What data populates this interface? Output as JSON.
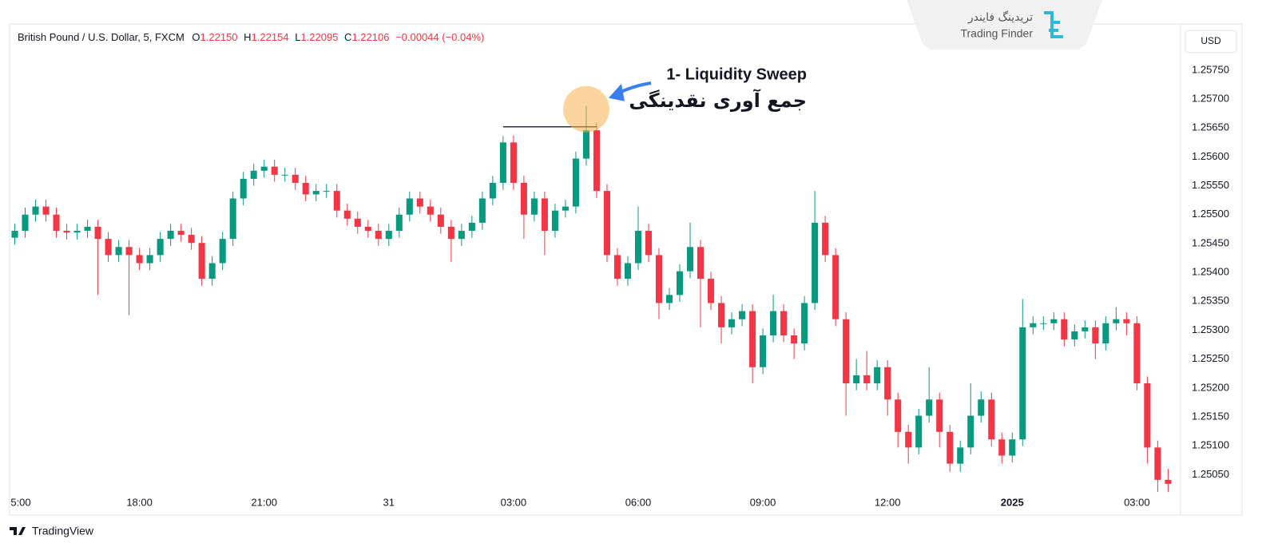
{
  "header": {
    "symbol": "British Pound / U.S. Dollar, 5, FXCM",
    "o_label": "O",
    "o": "1.22150",
    "h_label": "H",
    "h": "1.22154",
    "l_label": "L",
    "l": "1.22095",
    "c_label": "C",
    "c": "1.22106",
    "change": "−0.00044 (−0.04%)"
  },
  "currency": "USD",
  "brand": {
    "fa": "تریدینگ فایندر",
    "en": "Trading Finder"
  },
  "footer": {
    "platform": "TradingView"
  },
  "chart_data": {
    "type": "candlestick",
    "annotation": {
      "title": "1- Liquidity Sweep",
      "subtitle": "جمع آوری نقدینگی",
      "level": 1.25652,
      "from": 47,
      "to": 56,
      "target": 55
    },
    "up_color": "#089981",
    "down_color": "#f23645",
    "xlim": [
      -0.5,
      112.2
    ],
    "xticks": [
      {
        "value": 0,
        "label": "5:00"
      },
      {
        "value": 12,
        "label": "18:00"
      },
      {
        "value": 24,
        "label": "21:00"
      },
      {
        "value": 36,
        "label": "31"
      },
      {
        "value": 48,
        "label": "03:00"
      },
      {
        "value": 60,
        "label": "06:00"
      },
      {
        "value": 72,
        "label": "09:00"
      },
      {
        "value": 84,
        "label": "12:00"
      },
      {
        "value": 96,
        "label": "2025"
      },
      {
        "value": 108,
        "label": "03:00"
      }
    ],
    "ylim": [
      1.2498,
      1.2583
    ],
    "yticks": [
      {
        "value": 1.2505,
        "label": "1.25050"
      },
      {
        "value": 1.251,
        "label": "1.25100"
      },
      {
        "value": 1.2515,
        "label": "1.25150"
      },
      {
        "value": 1.252,
        "label": "1.25200"
      },
      {
        "value": 1.2525,
        "label": "1.25250"
      },
      {
        "value": 1.253,
        "label": "1.25300"
      },
      {
        "value": 1.2535,
        "label": "1.25350"
      },
      {
        "value": 1.254,
        "label": "1.25400"
      },
      {
        "value": 1.2545,
        "label": "1.25450"
      },
      {
        "value": 1.255,
        "label": "1.25500"
      },
      {
        "value": 1.2555,
        "label": "1.25550"
      },
      {
        "value": 1.256,
        "label": "1.25600"
      },
      {
        "value": 1.2565,
        "label": "1.25650"
      },
      {
        "value": 1.257,
        "label": "1.25700"
      },
      {
        "value": 1.2575,
        "label": "1.25750"
      }
    ],
    "open": [
      1.2546,
      1.25472,
      1.255,
      1.25514,
      1.255,
      1.25472,
      1.25469,
      1.25472,
      1.25479,
      1.25458,
      1.2543,
      1.25444,
      1.2543,
      1.25416,
      1.2543,
      1.25458,
      1.25472,
      1.25465,
      1.25451,
      1.25389,
      1.25416,
      1.25458,
      1.25528,
      1.25562,
      1.25576,
      1.25583,
      1.25569,
      1.25569,
      1.25555,
      1.25535,
      1.25541,
      1.25541,
      1.25507,
      1.25493,
      1.25479,
      1.25472,
      1.25458,
      1.25472,
      1.255,
      1.25528,
      1.25514,
      1.255,
      1.25479,
      1.25458,
      1.25472,
      1.25486,
      1.25528,
      1.25555,
      1.25625,
      1.25555,
      1.255,
      1.25528,
      1.25472,
      1.25507,
      1.25514,
      1.25597,
      1.25646,
      1.25541,
      1.2543,
      1.25389,
      1.25416,
      1.25472,
      1.2543,
      1.25347,
      1.25361,
      1.25402,
      1.25444,
      1.25389,
      1.25347,
      1.25305,
      1.25319,
      1.25333,
      1.25236,
      1.25291,
      1.25333,
      1.25291,
      1.25277,
      1.25347,
      1.25486,
      1.2543,
      1.25319,
      1.25208,
      1.25222,
      1.25208,
      1.25236,
      1.2518,
      1.25124,
      1.25097,
      1.25152,
      1.2518,
      1.25124,
      1.25069,
      1.25097,
      1.25152,
      1.2518,
      1.25111,
      1.25083,
      1.25111,
      1.25305,
      1.25312,
      1.25312,
      1.25319,
      1.25284,
      1.25298,
      1.25305,
      1.25277,
      1.25312,
      1.25319,
      1.25312,
      1.25208,
      1.25097,
      1.25041
    ],
    "high": [
      1.25484,
      1.25512,
      1.25526,
      1.25526,
      1.25512,
      1.25484,
      1.25484,
      1.25491,
      1.25491,
      1.2547,
      1.25456,
      1.25456,
      1.25442,
      1.25442,
      1.2547,
      1.25484,
      1.25484,
      1.25477,
      1.25463,
      1.25428,
      1.2547,
      1.2554,
      1.25574,
      1.25588,
      1.25595,
      1.25595,
      1.25581,
      1.25581,
      1.25567,
      1.25553,
      1.25553,
      1.25553,
      1.25519,
      1.25505,
      1.25491,
      1.25484,
      1.25484,
      1.25512,
      1.2554,
      1.2554,
      1.25526,
      1.25512,
      1.25491,
      1.25484,
      1.25498,
      1.2554,
      1.25567,
      1.25636,
      1.25637,
      1.25567,
      1.2554,
      1.2554,
      1.25519,
      1.25526,
      1.25609,
      1.25688,
      1.25658,
      1.25553,
      1.25442,
      1.25428,
      1.25514,
      1.25484,
      1.25442,
      1.25373,
      1.25414,
      1.25486,
      1.25456,
      1.25401,
      1.25359,
      1.25331,
      1.25345,
      1.25345,
      1.25303,
      1.25361,
      1.25345,
      1.25303,
      1.25359,
      1.25541,
      1.25498,
      1.25442,
      1.25331,
      1.2525,
      1.25264,
      1.25248,
      1.25248,
      1.25192,
      1.25136,
      1.25164,
      1.25236,
      1.25192,
      1.25136,
      1.25109,
      1.25208,
      1.25194,
      1.25192,
      1.25123,
      1.25123,
      1.25354,
      1.25324,
      1.25324,
      1.25331,
      1.25331,
      1.2531,
      1.25317,
      1.25317,
      1.25324,
      1.2534,
      1.25331,
      1.25324,
      1.2522,
      1.25109,
      1.2506
    ],
    "low": [
      1.25448,
      1.2546,
      1.25488,
      1.25488,
      1.2546,
      1.25457,
      1.25457,
      1.2546,
      1.25361,
      1.25418,
      1.25418,
      1.25326,
      1.25404,
      1.25404,
      1.25418,
      1.25446,
      1.25453,
      1.25439,
      1.25377,
      1.25377,
      1.25404,
      1.25446,
      1.25516,
      1.2555,
      1.25564,
      1.25557,
      1.25557,
      1.25543,
      1.25523,
      1.25523,
      1.25529,
      1.25495,
      1.25481,
      1.25467,
      1.2546,
      1.25446,
      1.25446,
      1.2546,
      1.25488,
      1.25502,
      1.25488,
      1.25467,
      1.25418,
      1.25446,
      1.2546,
      1.25474,
      1.25516,
      1.25543,
      1.25543,
      1.25458,
      1.25488,
      1.2543,
      1.2546,
      1.25495,
      1.25502,
      1.25585,
      1.25529,
      1.25418,
      1.25377,
      1.25377,
      1.25404,
      1.25418,
      1.25319,
      1.25335,
      1.25349,
      1.2539,
      1.25305,
      1.25335,
      1.25277,
      1.25293,
      1.25307,
      1.25208,
      1.25224,
      1.25279,
      1.25279,
      1.2525,
      1.25265,
      1.25335,
      1.25418,
      1.25307,
      1.25152,
      1.25196,
      1.25196,
      1.25196,
      1.25152,
      1.25097,
      1.25069,
      1.25085,
      1.2514,
      1.25097,
      1.25055,
      1.25055,
      1.25085,
      1.2514,
      1.25099,
      1.25069,
      1.25071,
      1.25099,
      1.25293,
      1.253,
      1.253,
      1.25272,
      1.25272,
      1.25286,
      1.2525,
      1.25265,
      1.253,
      1.25291,
      1.25196,
      1.25069,
      1.2502,
      1.2502
    ],
    "close": [
      1.25472,
      1.255,
      1.25514,
      1.255,
      1.25472,
      1.25469,
      1.25472,
      1.25479,
      1.25458,
      1.2543,
      1.25444,
      1.2543,
      1.25416,
      1.2543,
      1.25458,
      1.25472,
      1.25465,
      1.25451,
      1.25389,
      1.25416,
      1.25458,
      1.25528,
      1.25562,
      1.25576,
      1.25583,
      1.25569,
      1.25569,
      1.25555,
      1.25535,
      1.25541,
      1.25541,
      1.25507,
      1.25493,
      1.25479,
      1.25472,
      1.25458,
      1.25472,
      1.255,
      1.25528,
      1.25514,
      1.255,
      1.25479,
      1.25458,
      1.25472,
      1.25486,
      1.25528,
      1.25555,
      1.25625,
      1.25555,
      1.255,
      1.25528,
      1.25472,
      1.25507,
      1.25514,
      1.25597,
      1.25646,
      1.25541,
      1.2543,
      1.25389,
      1.25416,
      1.25472,
      1.2543,
      1.25347,
      1.25361,
      1.25402,
      1.25444,
      1.25389,
      1.25347,
      1.25305,
      1.25319,
      1.25333,
      1.25236,
      1.25291,
      1.25333,
      1.25291,
      1.25277,
      1.25347,
      1.25486,
      1.2543,
      1.25319,
      1.25208,
      1.25222,
      1.25208,
      1.25236,
      1.2518,
      1.25124,
      1.25097,
      1.25152,
      1.2518,
      1.25124,
      1.25069,
      1.25097,
      1.25152,
      1.2518,
      1.25111,
      1.25083,
      1.25111,
      1.25305,
      1.25312,
      1.25312,
      1.25319,
      1.25284,
      1.25298,
      1.25305,
      1.25277,
      1.25312,
      1.25319,
      1.25312,
      1.25208,
      1.25097,
      1.25041,
      1.25034
    ]
  }
}
